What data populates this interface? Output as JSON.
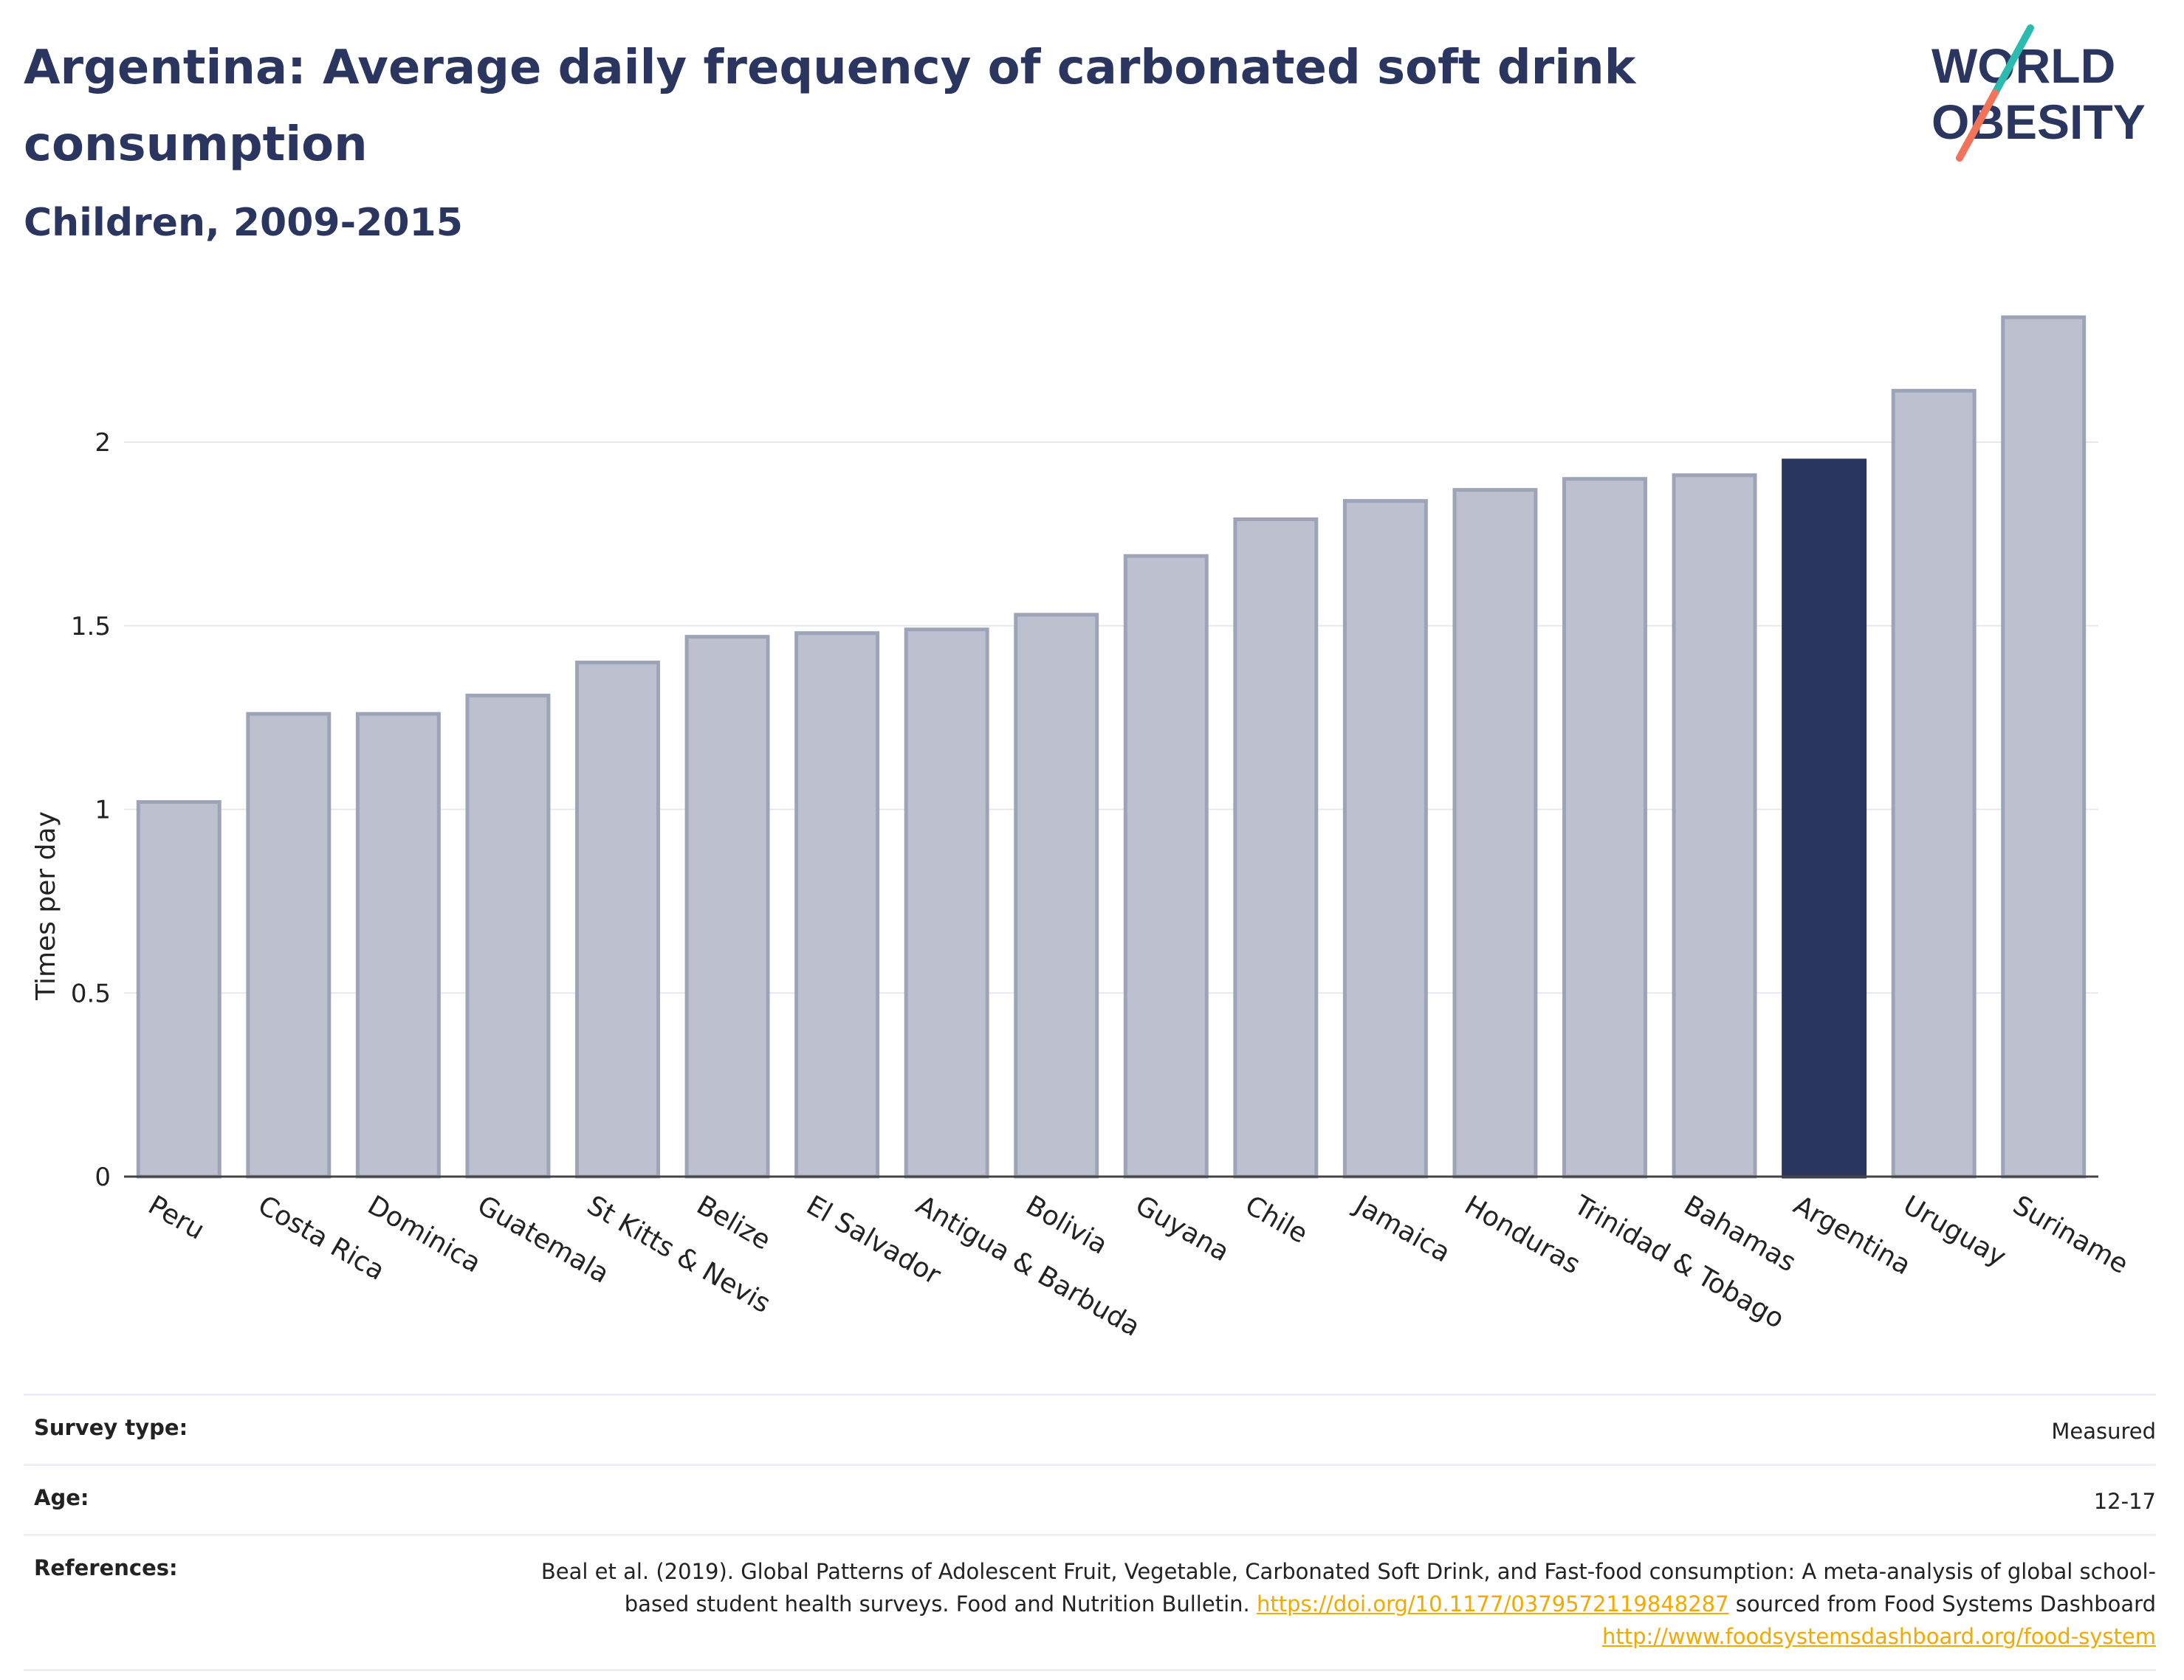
{
  "header": {
    "title": "Argentina: Average daily frequency of carbonated soft drink consumption",
    "subtitle": "Children, 2009-2015"
  },
  "logo": {
    "line1": "WORLD",
    "line2": "OBESITY",
    "accent_colors": [
      "#2bbbb0",
      "#f0735a"
    ]
  },
  "chart_data": {
    "type": "bar",
    "title": "Argentina: Average daily frequency of carbonated soft drink consumption",
    "subtitle": "Children, 2009-2015",
    "xlabel": "",
    "ylabel": "Times per day",
    "ylim": [
      0,
      2.4
    ],
    "yticks": [
      0,
      0.5,
      1,
      1.5,
      2
    ],
    "grid": true,
    "highlight": "Argentina",
    "colors": {
      "bar": "#bdc1cf",
      "bar_edge": "#9ea4b8",
      "highlight": "#2a3560"
    },
    "categories": [
      "Peru",
      "Costa Rica",
      "Dominica",
      "Guatemala",
      "St Kitts & Nevis",
      "Belize",
      "El Salvador",
      "Antigua & Barbuda",
      "Bolivia",
      "Guyana",
      "Chile",
      "Jamaica",
      "Honduras",
      "Trinidad & Tobago",
      "Bahamas",
      "Argentina",
      "Uruguay",
      "Suriname"
    ],
    "values": [
      1.02,
      1.26,
      1.26,
      1.31,
      1.4,
      1.47,
      1.48,
      1.49,
      1.53,
      1.69,
      1.79,
      1.84,
      1.87,
      1.9,
      1.91,
      1.95,
      2.14,
      2.34
    ]
  },
  "meta": [
    {
      "label": "Survey type:",
      "value": "Measured"
    },
    {
      "label": "Age:",
      "value": "12-17"
    },
    {
      "label": "References:",
      "text1": "Beal et al. (2019). Global Patterns of Adolescent Fruit, Vegetable, Carbonated Soft Drink, and Fast-food consumption: A meta-analysis of global school-based student health surveys. Food and Nutrition Bulletin. ",
      "link1": "https://doi.org/10.1177/0379572119848287",
      "text2": " sourced from Food Systems Dashboard ",
      "link2": "http://www.foodsystemsdashboard.org/food-system"
    }
  ]
}
